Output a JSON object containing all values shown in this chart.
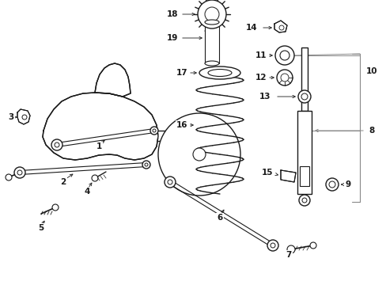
{
  "background_color": "#ffffff",
  "line_color": "#1a1a1a",
  "gray_color": "#888888",
  "figsize": [
    4.89,
    3.6
  ],
  "dpi": 100
}
